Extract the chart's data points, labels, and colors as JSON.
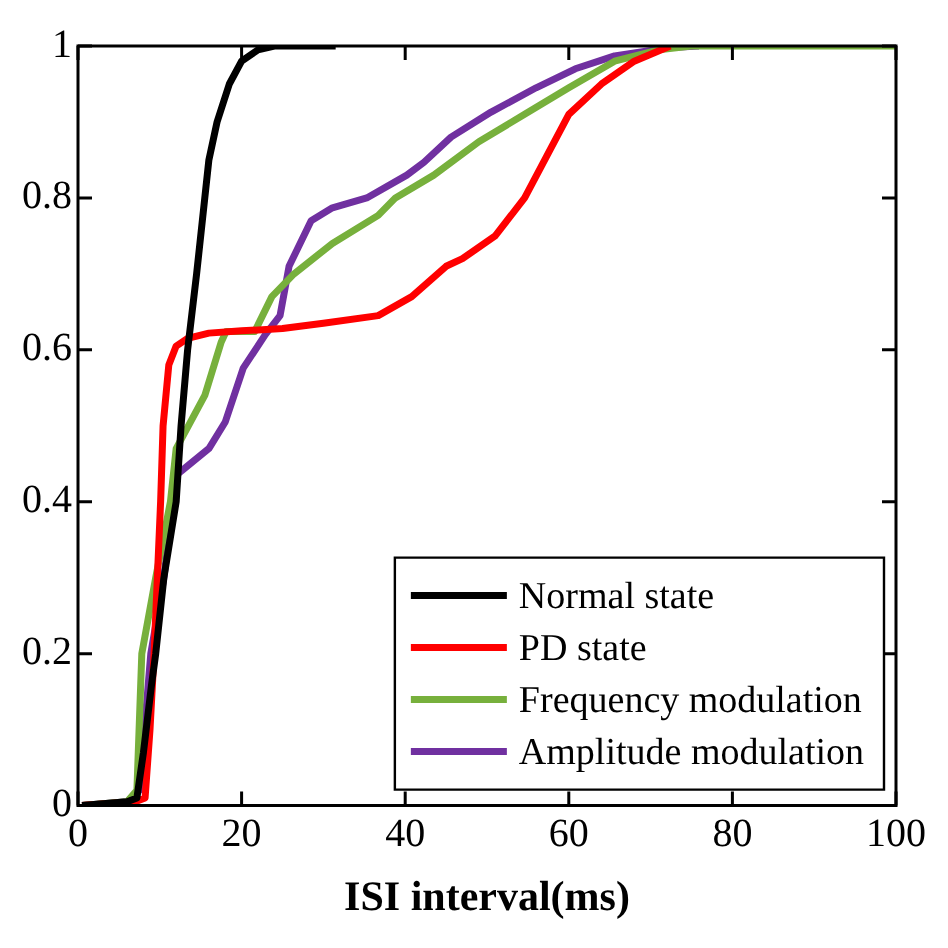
{
  "chart_data": {
    "type": "line",
    "xlabel": "ISI interval(ms)",
    "xlim": [
      0,
      100
    ],
    "xticks": [
      0,
      20,
      40,
      60,
      80,
      100
    ],
    "ylim": [
      0,
      1
    ],
    "yticks": [
      0,
      0.2,
      0.4,
      0.6,
      0.8,
      1
    ],
    "grid": false,
    "legend": "bottom right",
    "marker": "none",
    "line_style": "solid",
    "series": [
      {
        "name": "Normal state",
        "color": "#000000",
        "x": [
          0.5,
          6,
          7.2,
          8,
          9,
          9.5,
          10.5,
          12,
          12.6,
          13.4,
          14.5,
          15.5,
          16,
          17,
          18.5,
          20,
          22,
          24,
          31.5
        ],
        "values": [
          0,
          0.005,
          0.01,
          0.07,
          0.16,
          0.2,
          0.3,
          0.4,
          0.5,
          0.6,
          0.7,
          0.8,
          0.85,
          0.9,
          0.95,
          0.98,
          0.995,
          1,
          1
        ]
      },
      {
        "name": "PD state",
        "color": "#ff0000",
        "x": [
          0.5,
          7,
          8.2,
          8.8,
          9.3,
          9.7,
          10.1,
          10.4,
          11.1,
          12,
          13.4,
          16,
          20,
          25,
          30,
          36.7,
          40.8,
          45,
          47,
          51,
          54.6,
          57.3,
          60,
          64,
          68,
          72.4
        ],
        "values": [
          0,
          0.005,
          0.01,
          0.1,
          0.2,
          0.3,
          0.4,
          0.5,
          0.58,
          0.605,
          0.615,
          0.622,
          0.625,
          0.628,
          0.635,
          0.645,
          0.67,
          0.71,
          0.72,
          0.75,
          0.8,
          0.855,
          0.91,
          0.95,
          0.98,
          1
        ]
      },
      {
        "name": "Frequency modulation",
        "color": "#77b03c",
        "x": [
          0.5,
          6,
          7.2,
          7.8,
          9.5,
          11.3,
          12,
          15.5,
          17.5,
          18.1,
          21.6,
          23.7,
          26.4,
          31.1,
          36.7,
          38.8,
          43.5,
          49,
          54.6,
          60,
          65.6,
          71,
          75,
          100
        ],
        "values": [
          0,
          0.005,
          0.02,
          0.2,
          0.3,
          0.4,
          0.47,
          0.54,
          0.61,
          0.624,
          0.624,
          0.67,
          0.7,
          0.74,
          0.777,
          0.8,
          0.83,
          0.874,
          0.91,
          0.945,
          0.98,
          0.995,
          1,
          1
        ]
      },
      {
        "name": "Amplitude modulation",
        "color": "#7030a0",
        "x": [
          0.5,
          6,
          7.5,
          8.9,
          10.5,
          12,
          16,
          18,
          20.2,
          22.9,
          24.7,
          25.8,
          28.5,
          31.1,
          35.3,
          40.2,
          42.3,
          45.6,
          50.5,
          56,
          60.8,
          65.6,
          72.4,
          75.9
        ],
        "values": [
          0,
          0.005,
          0.02,
          0.2,
          0.3,
          0.435,
          0.47,
          0.505,
          0.576,
          0.62,
          0.645,
          0.71,
          0.77,
          0.787,
          0.8,
          0.83,
          0.847,
          0.88,
          0.913,
          0.945,
          0.97,
          0.987,
          0.998,
          1
        ]
      }
    ]
  }
}
